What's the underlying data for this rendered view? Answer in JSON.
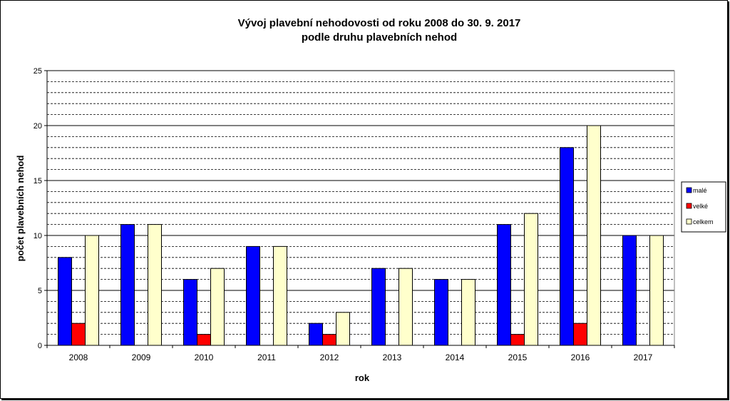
{
  "chart_data": {
    "type": "bar",
    "title_line1": "Vývoj plavební nehodovosti  od roku 2008 do 30. 9. 2017",
    "title_line2": "podle druhu plavebních nehod",
    "xlabel": "rok",
    "ylabel": "počet plavebních nehod",
    "ylim": [
      0,
      25
    ],
    "y_ticks": [
      0,
      5,
      10,
      15,
      20,
      25
    ],
    "minor_grid_step": 1,
    "grid": true,
    "legend_position": "right",
    "categories": [
      "2008",
      "2009",
      "2010",
      "2011",
      "2012",
      "2013",
      "2014",
      "2015",
      "2016",
      "2017"
    ],
    "series": [
      {
        "name": "malé",
        "color": "#0000ff",
        "values": [
          8,
          11,
          6,
          9,
          2,
          7,
          6,
          11,
          18,
          10
        ]
      },
      {
        "name": "velké",
        "color": "#ff0000",
        "values": [
          2,
          0,
          1,
          0,
          1,
          0,
          0,
          1,
          2,
          0
        ]
      },
      {
        "name": "celkem",
        "color": "#ffffcc",
        "values": [
          10,
          11,
          7,
          9,
          3,
          7,
          6,
          12,
          20,
          10
        ]
      }
    ]
  }
}
